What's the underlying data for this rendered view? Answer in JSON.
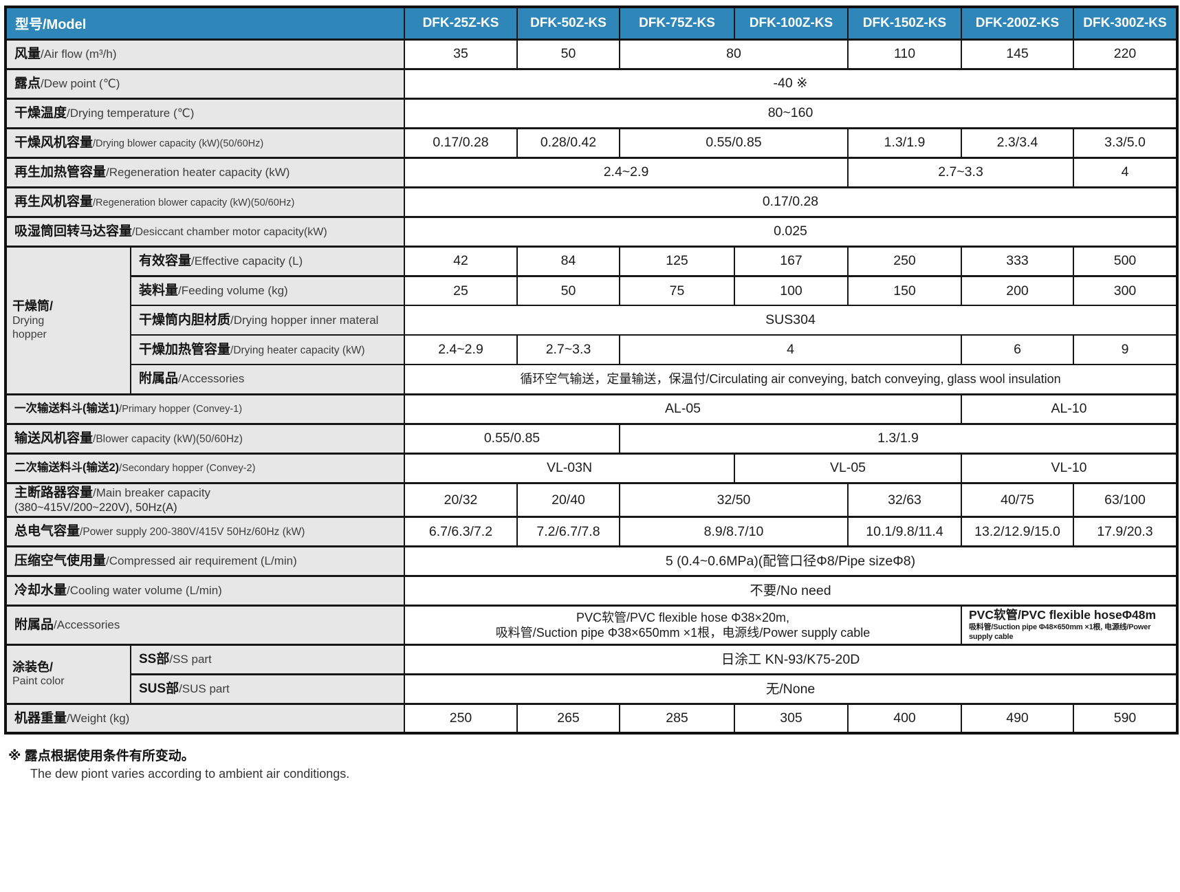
{
  "colors": {
    "header_bg": "#2e87b8",
    "header_text": "#ffffff",
    "label_bg": "#e7e7e7",
    "border": "#111111"
  },
  "header": {
    "label": "型号/Model",
    "models": [
      "DFK-25Z-KS",
      "DFK-50Z-KS",
      "DFK-75Z-KS",
      "DFK-100Z-KS",
      "DFK-150Z-KS",
      "DFK-200Z-KS",
      "DFK-300Z-KS"
    ]
  },
  "rows": [
    {
      "id": "air-flow",
      "cn": "风量",
      "en": "Air flow (m³/h)",
      "cells": [
        {
          "t": "35"
        },
        {
          "t": "50"
        },
        {
          "t": "80",
          "s": 2
        },
        {
          "t": "110"
        },
        {
          "t": "145"
        },
        {
          "t": "220"
        }
      ]
    },
    {
      "id": "dew-point",
      "cn": "露点",
      "en": "Dew point (℃)",
      "cells": [
        {
          "t": "-40 ※",
          "s": 7
        }
      ]
    },
    {
      "id": "drying-temp",
      "cn": "干燥温度",
      "en": "Drying temperature (℃)",
      "cells": [
        {
          "t": "80~160",
          "s": 7
        }
      ]
    },
    {
      "id": "drying-blower",
      "cn": "干燥风机容量",
      "en": "Drying blower capacity (kW)(50/60Hz)",
      "cells": [
        {
          "t": "0.17/0.28"
        },
        {
          "t": "0.28/0.42"
        },
        {
          "t": "0.55/0.85",
          "s": 2
        },
        {
          "t": "1.3/1.9"
        },
        {
          "t": "2.3/3.4"
        },
        {
          "t": "3.3/5.0"
        }
      ]
    },
    {
      "id": "regen-heater",
      "cn": "再生加热管容量",
      "en": "Regeneration heater capacity (kW)",
      "cells": [
        {
          "t": "2.4~2.9",
          "s": 4
        },
        {
          "t": "2.7~3.3",
          "s": 2
        },
        {
          "t": "4"
        }
      ]
    },
    {
      "id": "regen-blower",
      "cn": "再生风机容量",
      "en": "Regeneration blower capacity  (kW)(50/60Hz)",
      "cells": [
        {
          "t": "0.17/0.28",
          "s": 7
        }
      ]
    },
    {
      "id": "desiccant-motor",
      "cn": "吸湿筒回转马达容量",
      "en": "Desiccant chamber motor capacity(kW)",
      "cells": [
        {
          "t": "0.025",
          "s": 7
        }
      ]
    },
    {
      "id": "effective-capacity",
      "group": {
        "lines": [
          "干燥筒/",
          "Drying",
          "hopper"
        ],
        "span": 5
      },
      "cn": "有效容量",
      "en": "Effective capacity (L)",
      "cells": [
        {
          "t": "42"
        },
        {
          "t": "84"
        },
        {
          "t": "125"
        },
        {
          "t": "167"
        },
        {
          "t": "250"
        },
        {
          "t": "333"
        },
        {
          "t": "500"
        }
      ]
    },
    {
      "id": "feeding-volume",
      "grouped": true,
      "cn": "装料量",
      "en": "Feeding volume (kg)",
      "cells": [
        {
          "t": "25"
        },
        {
          "t": "50"
        },
        {
          "t": "75"
        },
        {
          "t": "100"
        },
        {
          "t": "150"
        },
        {
          "t": "200"
        },
        {
          "t": "300"
        }
      ]
    },
    {
      "id": "inner-material",
      "grouped": true,
      "cn": "干燥筒内胆材质",
      "en": "Drying hopper inner materal",
      "cells": [
        {
          "t": "SUS304",
          "s": 7
        }
      ]
    },
    {
      "id": "drying-heater",
      "grouped": true,
      "cn": "干燥加热管容量",
      "en": "Drying heater capacity (kW)",
      "cells": [
        {
          "t": "2.4~2.9"
        },
        {
          "t": "2.7~3.3"
        },
        {
          "t": "4",
          "s": 3
        },
        {
          "t": "6"
        },
        {
          "t": "9"
        }
      ]
    },
    {
      "id": "hopper-accessories",
      "grouped": true,
      "cn": "附属品",
      "en": "Accessories",
      "cells": [
        {
          "t": "循环空气输送，定量输送，保温付/Circulating air  conveying, batch conveying, glass wool insulation",
          "s": 7
        }
      ]
    },
    {
      "id": "primary-hopper",
      "cn": "一次输送料斗(输送1)",
      "en": "Primary hopper (Convey-1)",
      "cells": [
        {
          "t": "AL-05",
          "s": 5
        },
        {
          "t": "AL-10",
          "s": 2
        }
      ]
    },
    {
      "id": "blower-capacity",
      "cn": "输送风机容量",
      "en": "Blower capacity (kW)(50/60Hz)",
      "cells": [
        {
          "t": "0.55/0.85",
          "s": 2
        },
        {
          "t": "1.3/1.9",
          "s": 5
        }
      ]
    },
    {
      "id": "secondary-hopper",
      "cn": "二次输送料斗(输送2)",
      "en": "Secondary hopper (Convey-2)",
      "cells": [
        {
          "t": "VL-03N",
          "s": 3
        },
        {
          "t": "VL-05",
          "s": 2
        },
        {
          "t": "VL-10",
          "s": 2
        }
      ]
    },
    {
      "id": "main-breaker",
      "cn": "主断路器容量",
      "en": "Main breaker capacity",
      "cn2": "(380~415V/200~220V), 50Hz(A)",
      "cells": [
        {
          "t": "20/32"
        },
        {
          "t": "20/40"
        },
        {
          "t": "32/50",
          "s": 2
        },
        {
          "t": "32/63"
        },
        {
          "t": "40/75"
        },
        {
          "t": "63/100"
        }
      ]
    },
    {
      "id": "power-supply",
      "cn": "总电气容量",
      "en": "Power supply 200-380V/415V 50Hz/60Hz (kW)",
      "cells": [
        {
          "t": "6.7/6.3/7.2"
        },
        {
          "t": "7.2/6.7/7.8"
        },
        {
          "t": "8.9/8.7/10",
          "s": 2
        },
        {
          "t": "10.1/9.8/11.4"
        },
        {
          "t": "13.2/12.9/15.0"
        },
        {
          "t": "17.9/20.3"
        }
      ]
    },
    {
      "id": "compressed-air",
      "cn": "压缩空气使用量",
      "en": "Compressed air requirement (L/min)",
      "cells": [
        {
          "t": "5 (0.4~0.6MPa)(配管口径Φ8/Pipe sizeΦ8)",
          "s": 7
        }
      ]
    },
    {
      "id": "cooling-water",
      "cn": "冷却水量",
      "en": "Cooling water volume (L/min)",
      "cells": [
        {
          "t": "不要/No need",
          "s": 7
        }
      ]
    },
    {
      "id": "machine-accessories",
      "cn": "附属品",
      "en": "Accessories",
      "cells": [
        {
          "lines": [
            "PVC软管/PVC flexible hose Φ38×20m,",
            "吸料管/Suction pipe Φ38×650mm ×1根，电源线/Power supply cable"
          ],
          "s": 5
        },
        {
          "lines": [
            "PVC软管/PVC flexible hoseΦ48m",
            "吸料管/Suction pipe Φ48×650mm ×1根, 电源线/Power supply cable"
          ],
          "s": 2,
          "small2": true,
          "right": true
        }
      ]
    },
    {
      "id": "paint-ss",
      "group": {
        "lines": [
          "涂装色/",
          "Paint color"
        ],
        "span": 2
      },
      "cn": "SS部",
      "en": "SS part",
      "cells": [
        {
          "t": "日涂工 KN-93/K75-20D",
          "s": 7
        }
      ]
    },
    {
      "id": "paint-sus",
      "grouped": true,
      "cn": "SUS部",
      "en": "SUS part",
      "cells": [
        {
          "t": "无/None",
          "s": 7
        }
      ]
    },
    {
      "id": "weight",
      "cn": "机器重量",
      "en": "Weight (kg)",
      "cells": [
        {
          "t": "250"
        },
        {
          "t": "265"
        },
        {
          "t": "285"
        },
        {
          "t": "305"
        },
        {
          "t": "400"
        },
        {
          "t": "490"
        },
        {
          "t": "590"
        }
      ]
    }
  ],
  "footnote": {
    "line1": "※ 露点根据使用条件有所变动。",
    "line2": "The dew piont varies according to ambient air conditiongs."
  }
}
